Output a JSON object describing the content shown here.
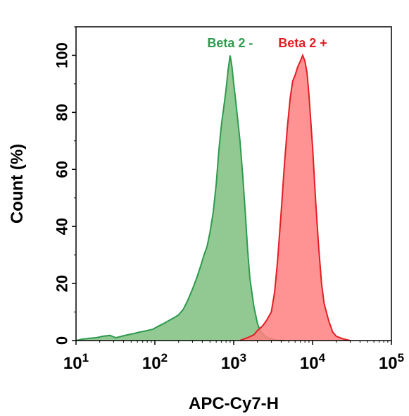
{
  "chart_data": {
    "type": "area",
    "title": "",
    "xlabel": "APC-Cy7-H",
    "ylabel": "Count  (%)",
    "x_scale": "log",
    "xlim": [
      10,
      100000
    ],
    "ylim": [
      0,
      110
    ],
    "x_ticks": [
      {
        "value": 10,
        "base": "10",
        "exp": "1"
      },
      {
        "value": 100,
        "base": "10",
        "exp": "2"
      },
      {
        "value": 1000,
        "base": "10",
        "exp": "3"
      },
      {
        "value": 10000,
        "base": "10",
        "exp": "4"
      },
      {
        "value": 100000,
        "base": "10",
        "exp": "5"
      }
    ],
    "y_ticks": [
      "0",
      "20",
      "40",
      "60",
      "80",
      "100"
    ],
    "grid": false,
    "legend_placement": "top, above each peak",
    "series": [
      {
        "name": "Beta 2 -",
        "color": "#2e9a4e",
        "fill": "#7fbf7f",
        "x": [
          10,
          12,
          15,
          18,
          22,
          27,
          32,
          38,
          45,
          55,
          65,
          80,
          95,
          110,
          130,
          150,
          175,
          200,
          230,
          260,
          300,
          340,
          380,
          420,
          460,
          500,
          550,
          600,
          650,
          700,
          750,
          800,
          850,
          900,
          950,
          1000,
          1050,
          1100,
          1200,
          1300,
          1400,
          1500,
          1600,
          1800,
          2000,
          2200,
          2500,
          2800,
          3200,
          3800,
          4500
        ],
        "values": [
          0,
          0.5,
          0.8,
          1,
          1.5,
          1.8,
          1,
          1.5,
          2,
          2.5,
          3,
          3.5,
          4,
          5,
          6,
          7,
          8,
          9,
          11,
          14,
          18,
          22,
          26,
          30,
          33,
          38,
          45,
          55,
          67,
          76,
          82,
          88,
          95,
          100,
          96,
          90,
          85,
          80,
          70,
          58,
          45,
          32,
          22,
          12,
          6,
          3,
          1.5,
          0.8,
          0.3,
          0,
          0
        ]
      },
      {
        "name": "Beta 2 +",
        "color": "#e31e24",
        "fill": "#ff7f7f",
        "x": [
          1200,
          1500,
          1800,
          2000,
          2300,
          2600,
          3000,
          3300,
          3600,
          4000,
          4400,
          4800,
          5200,
          5600,
          6000,
          6500,
          7000,
          7500,
          8000,
          8500,
          9000,
          10000,
          11000,
          12000,
          13000,
          14000,
          16000,
          18000,
          20000,
          25000,
          30000
        ],
        "values": [
          0,
          1,
          2,
          3.5,
          5,
          7,
          10,
          17,
          28,
          45,
          62,
          75,
          85,
          91,
          93,
          96,
          98,
          100,
          98,
          94,
          86,
          68,
          48,
          32,
          20,
          13,
          7,
          3,
          1.5,
          0.5,
          0
        ]
      }
    ]
  }
}
